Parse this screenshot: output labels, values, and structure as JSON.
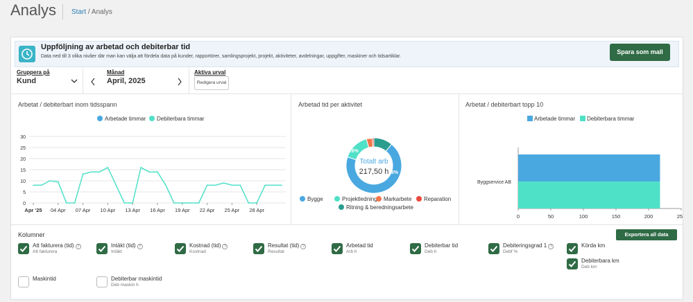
{
  "page": {
    "title": "Analys",
    "breadcrumb_start": "Start",
    "breadcrumb_sep": " / ",
    "breadcrumb_current": "Analys"
  },
  "banner": {
    "title": "Uppföljning av arbetad och debiterbar tid",
    "subtitle": "Data ned till 3 olika nivåer där man kan välja att fördela data på kunder, rapportörer, samlingsprojekt, projekt, aktiviteter, avdelningar, uppgifter, maskiner och tidsartiklar.",
    "save_button": "Spara som mall",
    "icon": "clock-icon"
  },
  "filters": {
    "group_label": "Gruppera på",
    "group_value": "Kund",
    "month_label": "Månad",
    "month_value": "April, 2025",
    "active_label": "Aktiva urval",
    "edit_button": "Redigera urval"
  },
  "line_chart": {
    "title": "Arbetat / debiterbart inom tidsspann",
    "legend": [
      "Arbetade timmar",
      "Debiterbara timmar"
    ]
  },
  "donut": {
    "title": "Arbetad tid per aktivitet",
    "center_label": "Totalt arb",
    "center_value": "217,50 h",
    "legend": [
      "Bygge",
      "Projektledning",
      "Markarbete",
      "Reparation",
      "Ritning & beredningsarbete"
    ],
    "labels": {
      "bygge": "69%",
      "projekt": "15.6%",
      "ritning": "11%"
    }
  },
  "bar_chart": {
    "title": "Arbetat / debiterbart topp 10",
    "legend": [
      "Arbetade timmar",
      "Debiterbara timmar"
    ]
  },
  "columns": {
    "title": "Kolumner",
    "export_button": "Exportera all data",
    "items": [
      {
        "label": "Att fakturera (tid)",
        "sub": "Att fakturera",
        "checked": true,
        "help": true
      },
      {
        "label": "Intäkt (tid)",
        "sub": "Intäkt",
        "checked": true,
        "help": true
      },
      {
        "label": "Kostnad (tid)",
        "sub": "Kostnad",
        "checked": true,
        "help": true
      },
      {
        "label": "Resultat (tid)",
        "sub": "Resultat",
        "checked": true,
        "help": true
      },
      {
        "label": "Arbetad tid",
        "sub": "Arb h",
        "checked": true,
        "help": false
      },
      {
        "label": "Debiterbar tid",
        "sub": "Deb h",
        "checked": true,
        "help": false
      },
      {
        "label": "Debiteringsgrad 1",
        "sub": "Debf %",
        "checked": true,
        "help": true
      },
      {
        "label": "Körda km",
        "sub": "",
        "checked": true,
        "help": false
      },
      {
        "label": "Debiterbara km",
        "sub": "Deb km",
        "checked": true,
        "help": false
      },
      {
        "label": "Maskintid",
        "sub": "",
        "checked": false,
        "help": false
      },
      {
        "label": "Debiterbar maskintid",
        "sub": "Deb maskin h",
        "checked": false,
        "help": false
      }
    ]
  },
  "colors": {
    "worked": "#4aa8e0",
    "billable": "#4fe0c8",
    "markarbete": "#f0764a",
    "reparation": "#e84a3c",
    "ritning": "#2a9d8f",
    "primary": "#2f6b45"
  },
  "chart_data": [
    {
      "type": "line",
      "title": "Arbetat / debiterbart inom tidsspann",
      "x_ticks": [
        "Apr '25",
        "04 Apr",
        "07 Apr",
        "10 Apr",
        "13 Apr",
        "16 Apr",
        "19 Apr",
        "22 Apr",
        "25 Apr",
        "28 Apr"
      ],
      "y_ticks": [
        "30",
        "25",
        "20",
        "15",
        "10",
        "5",
        "0"
      ],
      "ylim": [
        0,
        30
      ],
      "series": [
        {
          "name": "Debiterbara timmar",
          "values": [
            8,
            8,
            10,
            9.5,
            0,
            0,
            13,
            14,
            14,
            16,
            8,
            0,
            0,
            16,
            14,
            14,
            8,
            0,
            0,
            0,
            0,
            8,
            8,
            9,
            8,
            8,
            0,
            0,
            8,
            8,
            8
          ]
        }
      ]
    },
    {
      "type": "pie",
      "title": "Arbetad tid per aktivitet",
      "slices": [
        {
          "name": "Bygge",
          "value": 69
        },
        {
          "name": "Projektledning",
          "value": 15.6
        },
        {
          "name": "Markarbete",
          "value": 3.5
        },
        {
          "name": "Reparation",
          "value": 0.9
        },
        {
          "name": "Ritning & beredningsarbete",
          "value": 11
        }
      ]
    },
    {
      "type": "bar",
      "title": "Arbetat / debiterbart topp 10",
      "categories": [
        "Byggservice AB"
      ],
      "x_ticks": [
        "0",
        "50",
        "100",
        "150",
        "200",
        "250"
      ],
      "xlim": [
        0,
        250
      ],
      "series": [
        {
          "name": "Arbetade timmar",
          "values": [
            217.5
          ]
        },
        {
          "name": "Debiterbara timmar",
          "values": [
            217.5
          ]
        }
      ]
    }
  ]
}
